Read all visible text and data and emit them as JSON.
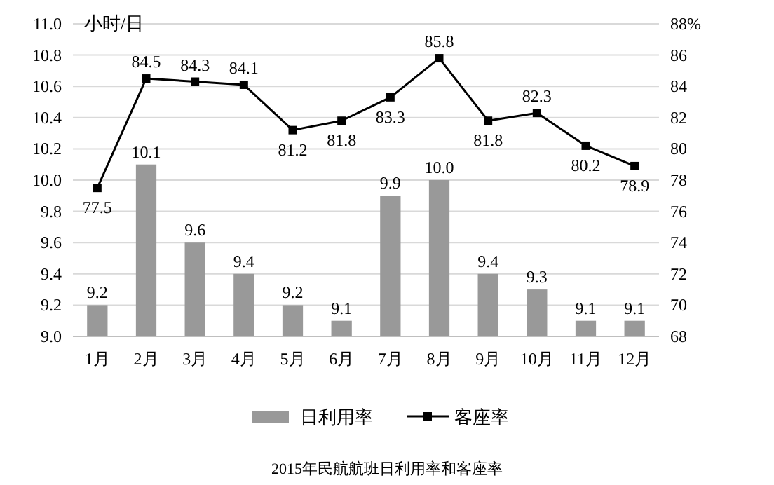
{
  "chart_data": {
    "type": "bar",
    "title": "2015年民航航班日利用率和客座率",
    "ylabel": "小时/日",
    "categories": [
      "1月",
      "2月",
      "3月",
      "4月",
      "5月",
      "6月",
      "7月",
      "8月",
      "9月",
      "10月",
      "11月",
      "12月"
    ],
    "series": [
      {
        "name": "日利用率",
        "color": "#999999",
        "values": [
          9.2,
          10.1,
          9.6,
          9.4,
          9.2,
          9.1,
          9.9,
          10.0,
          9.4,
          9.3,
          9.1,
          9.1
        ],
        "value_labels": [
          "9.2",
          "10.1",
          "9.6",
          "9.4",
          "9.2",
          "9.1",
          "9.9",
          "10.0",
          "9.4",
          "9.3",
          "9.1",
          "9.1"
        ]
      },
      {
        "name": "客座率",
        "type": "line",
        "axis": "y2",
        "color": "#000000",
        "marker": "square",
        "values": [
          77.5,
          84.5,
          84.3,
          84.1,
          81.2,
          81.8,
          83.3,
          85.8,
          81.8,
          82.3,
          80.2,
          78.9
        ]
      }
    ],
    "ylim": [
      9.0,
      11.0
    ],
    "yticks": [
      {
        "value": 9.0,
        "label": "9.0"
      },
      9.2,
      9.4,
      9.6,
      9.8,
      {
        "value": 10.0,
        "label": "10.0"
      },
      10.2,
      10.4,
      10.6,
      10.8,
      {
        "value": 11.0,
        "label": "11.0"
      }
    ],
    "y2lim": [
      68,
      88
    ],
    "y2ticks": [
      68,
      70,
      72,
      74,
      76,
      78,
      80,
      82,
      84,
      86,
      {
        "value": 88,
        "label": "88%"
      }
    ],
    "grid": "y",
    "legend": "bottom",
    "data_labels": true
  }
}
